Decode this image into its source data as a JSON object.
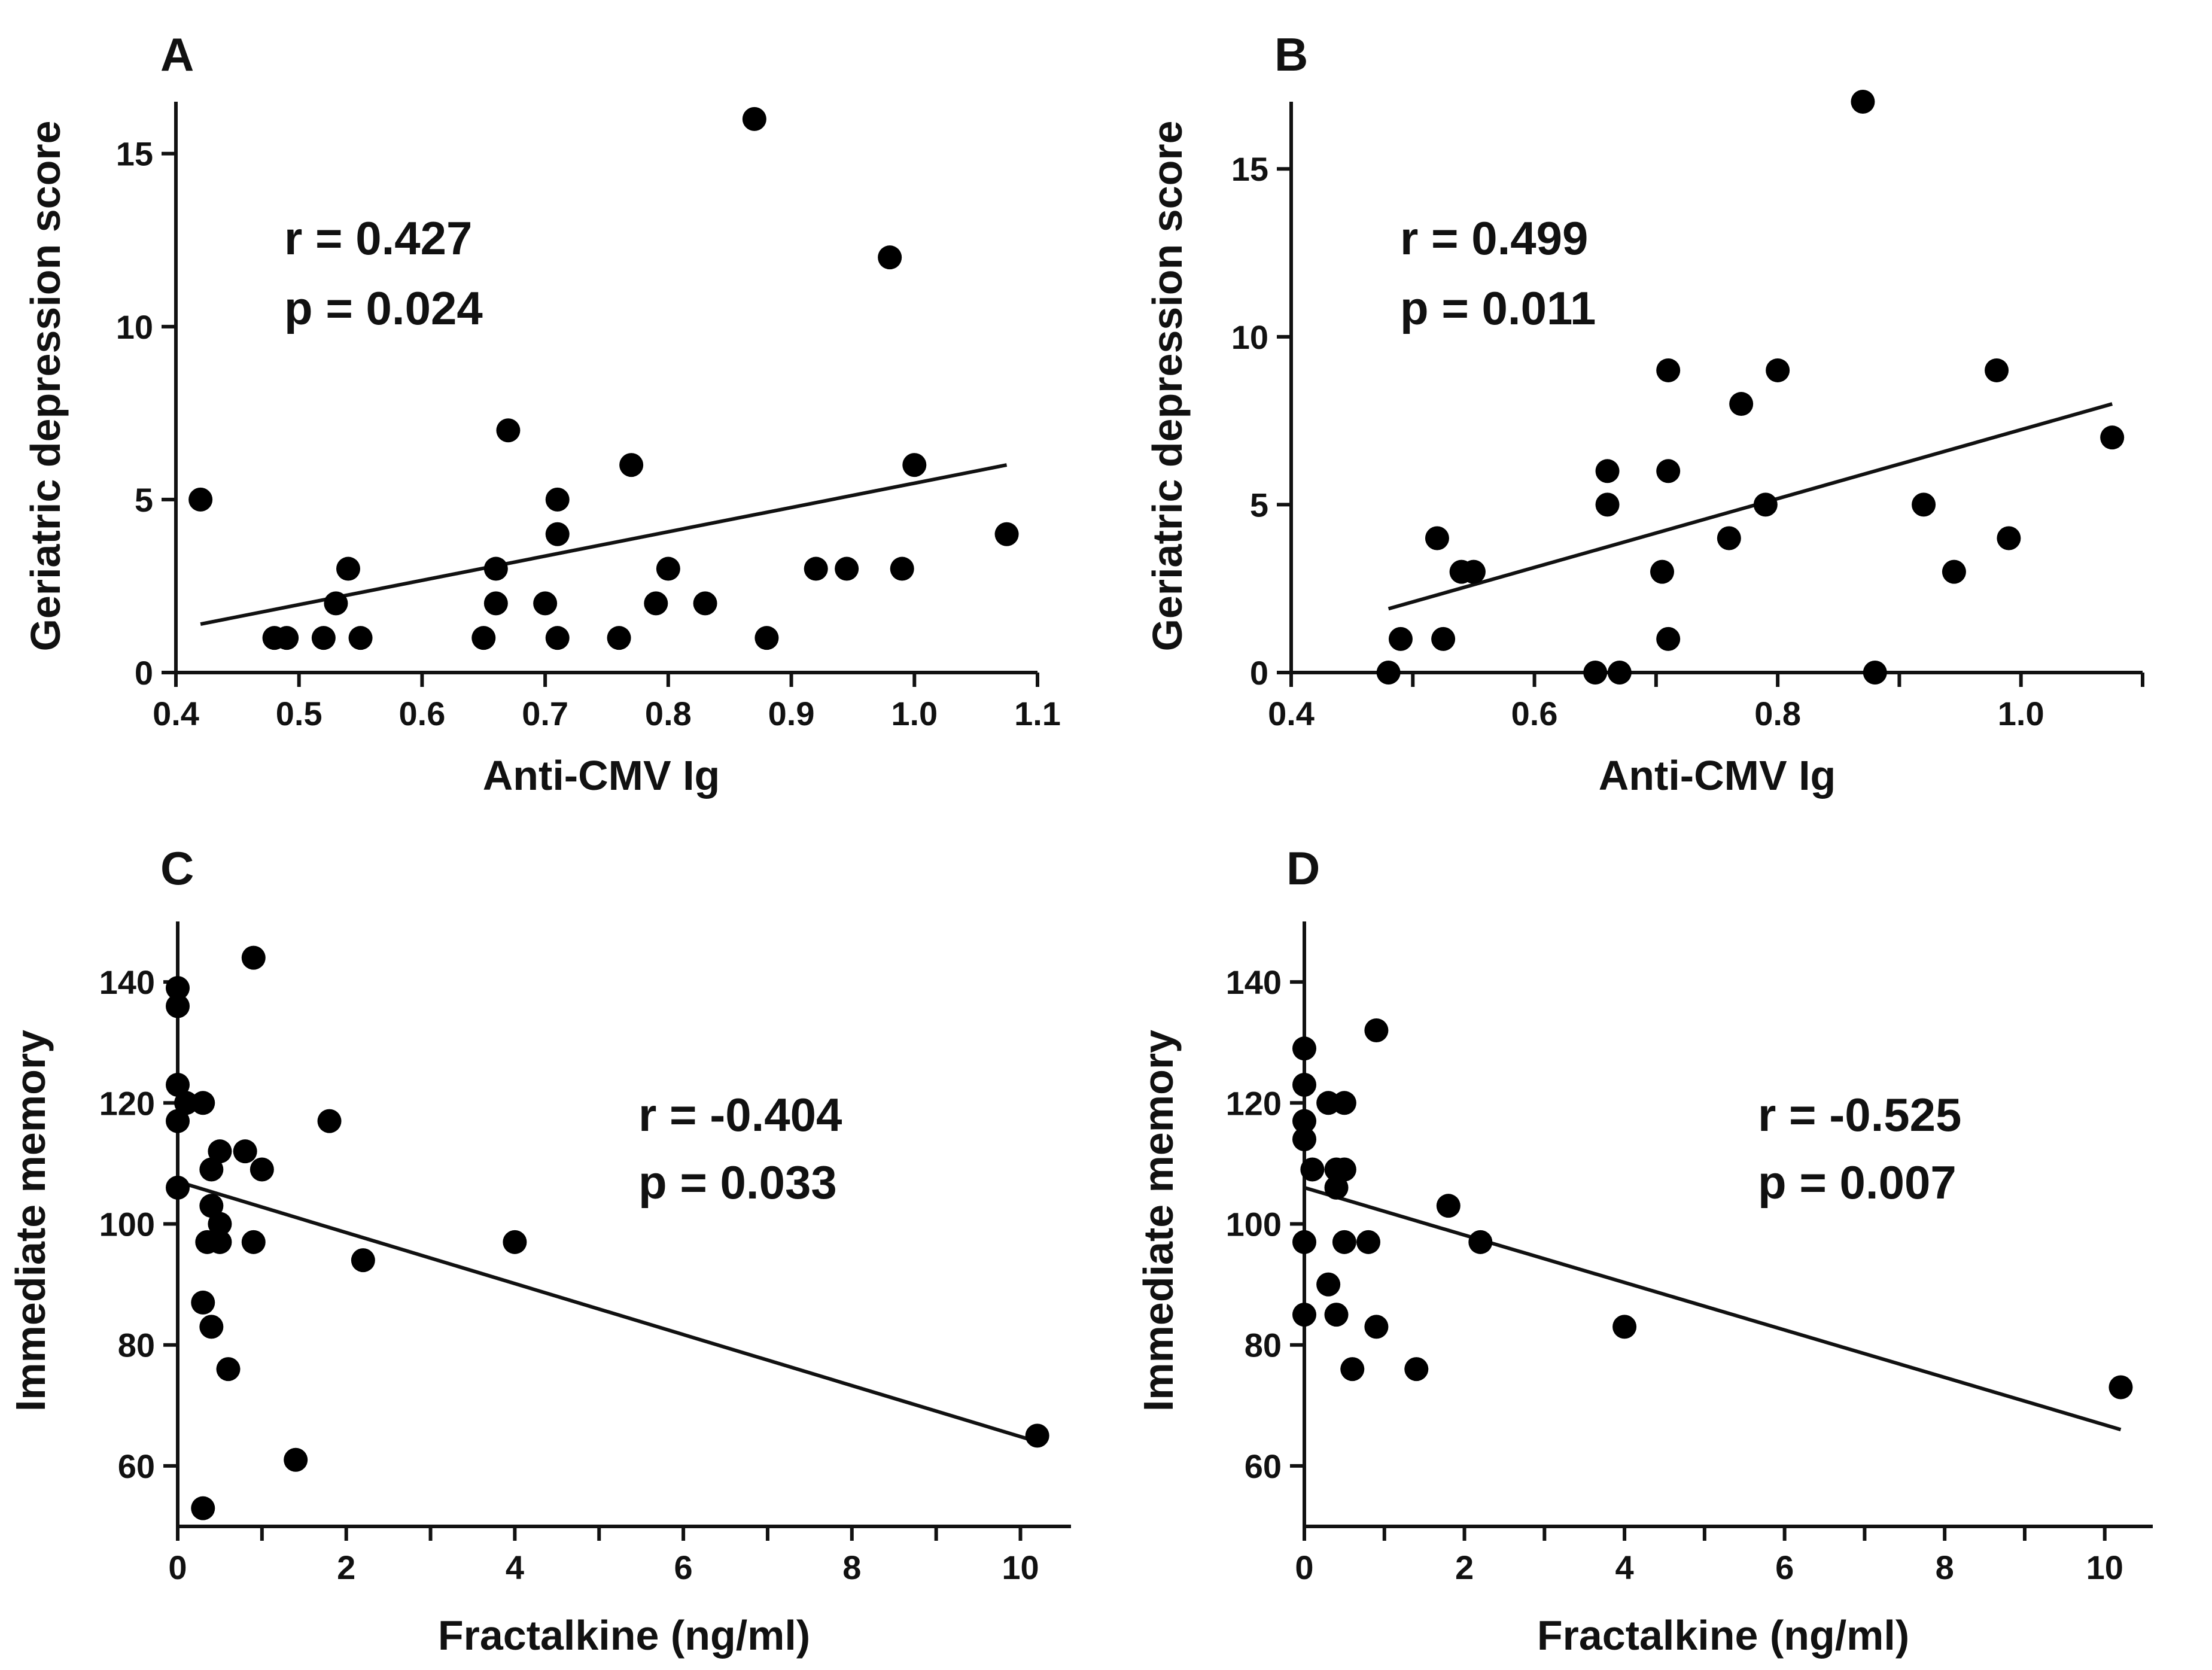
{
  "chart_data": [
    {
      "panel": "A",
      "type": "scatter",
      "xlabel": "Anti-CMV Ig",
      "ylabel": "Geriatric depression score",
      "xlim": [
        0.4,
        1.1
      ],
      "ylim": [
        0,
        16.5
      ],
      "xticks": [
        0.4,
        0.5,
        0.6,
        0.7,
        0.8,
        0.9,
        1.0,
        1.1
      ],
      "xtick_labels": [
        "0.4",
        "0.5",
        "0.6",
        "0.7",
        "0.8",
        "0.9",
        "1.0",
        "1.1"
      ],
      "yticks": [
        0,
        5,
        10,
        15
      ],
      "ytick_labels": [
        "0",
        "5",
        "10",
        "15"
      ],
      "stats": [
        "r = 0.427",
        "p = 0.024"
      ],
      "stats_position": "top-left",
      "grid": false,
      "points": [
        [
          0.42,
          5
        ],
        [
          0.48,
          1
        ],
        [
          0.49,
          1
        ],
        [
          0.52,
          1
        ],
        [
          0.53,
          2
        ],
        [
          0.54,
          3
        ],
        [
          0.55,
          1
        ],
        [
          0.65,
          1
        ],
        [
          0.66,
          3
        ],
        [
          0.66,
          2
        ],
        [
          0.67,
          7
        ],
        [
          0.7,
          2
        ],
        [
          0.71,
          5
        ],
        [
          0.71,
          4
        ],
        [
          0.71,
          1
        ],
        [
          0.76,
          1
        ],
        [
          0.77,
          6
        ],
        [
          0.79,
          2
        ],
        [
          0.8,
          3
        ],
        [
          0.83,
          2
        ],
        [
          0.87,
          16
        ],
        [
          0.88,
          1
        ],
        [
          0.92,
          3
        ],
        [
          0.945,
          3
        ],
        [
          0.98,
          12
        ],
        [
          0.99,
          3
        ],
        [
          1.0,
          6
        ],
        [
          1.075,
          4
        ]
      ],
      "fit": [
        [
          0.42,
          1.4
        ],
        [
          1.075,
          6.0
        ]
      ]
    },
    {
      "panel": "B",
      "type": "scatter",
      "xlabel": "Anti-CMV Ig",
      "ylabel": "Geriatric depression score",
      "xlim": [
        0.4,
        1.1
      ],
      "ylim": [
        0,
        17
      ],
      "xticks": [
        0.4,
        0.6,
        0.8,
        1.0
      ],
      "xtick_labels": [
        "0.4",
        "0.6",
        "0.8",
        "1.0"
      ],
      "yticks": [
        0,
        5,
        10,
        15
      ],
      "ytick_labels": [
        "0",
        "5",
        "10",
        "15"
      ],
      "stats": [
        "r = 0.499",
        "p = 0.011"
      ],
      "stats_position": "top-left",
      "grid": false,
      "points": [
        [
          0.48,
          0
        ],
        [
          0.49,
          1
        ],
        [
          0.52,
          4
        ],
        [
          0.525,
          1
        ],
        [
          0.54,
          3
        ],
        [
          0.55,
          3
        ],
        [
          0.65,
          0
        ],
        [
          0.66,
          6
        ],
        [
          0.66,
          5
        ],
        [
          0.67,
          0
        ],
        [
          0.705,
          3
        ],
        [
          0.71,
          9
        ],
        [
          0.71,
          6
        ],
        [
          0.71,
          1
        ],
        [
          0.76,
          4
        ],
        [
          0.77,
          8
        ],
        [
          0.79,
          5
        ],
        [
          0.8,
          9
        ],
        [
          0.87,
          17
        ],
        [
          0.88,
          0
        ],
        [
          0.92,
          5
        ],
        [
          0.945,
          3
        ],
        [
          0.98,
          9
        ],
        [
          0.99,
          4
        ],
        [
          1.075,
          7
        ]
      ],
      "fit": [
        [
          0.48,
          1.9
        ],
        [
          1.075,
          8.0
        ]
      ]
    },
    {
      "panel": "C",
      "type": "scatter",
      "xlabel": "Fractalkine (ng/ml)",
      "ylabel": "Immediate memory",
      "xlim": [
        0,
        10.6
      ],
      "ylim": [
        50,
        150
      ],
      "xticks": [
        0,
        2,
        4,
        6,
        8,
        10
      ],
      "xtick_labels": [
        "0",
        "2",
        "4",
        "6",
        "8",
        "10"
      ],
      "yticks": [
        60,
        80,
        100,
        120,
        140
      ],
      "ytick_labels": [
        "60",
        "80",
        "100",
        "120",
        "140"
      ],
      "stats": [
        "r = -0.404",
        "p = 0.033"
      ],
      "stats_position": "center-right",
      "grid": false,
      "points": [
        [
          0,
          139
        ],
        [
          0,
          136
        ],
        [
          0,
          123
        ],
        [
          0,
          117
        ],
        [
          0,
          106
        ],
        [
          0.1,
          120
        ],
        [
          0.3,
          120
        ],
        [
          0.3,
          87
        ],
        [
          0.3,
          53
        ],
        [
          0.35,
          97
        ],
        [
          0.4,
          109
        ],
        [
          0.4,
          103
        ],
        [
          0.4,
          83
        ],
        [
          0.5,
          112
        ],
        [
          0.5,
          100
        ],
        [
          0.5,
          97
        ],
        [
          0.6,
          76
        ],
        [
          0.8,
          112
        ],
        [
          0.9,
          97
        ],
        [
          0.9,
          144
        ],
        [
          1.0,
          109
        ],
        [
          1.4,
          61
        ],
        [
          1.8,
          117
        ],
        [
          2.2,
          94
        ],
        [
          4.0,
          97
        ],
        [
          10.2,
          65
        ]
      ],
      "fit": [
        [
          0,
          107
        ],
        [
          10.2,
          64
        ]
      ]
    },
    {
      "panel": "D",
      "type": "scatter",
      "xlabel": "Fractalkine (ng/ml)",
      "ylabel": "Immediate memory",
      "xlim": [
        0,
        10.6
      ],
      "ylim": [
        50,
        150
      ],
      "xticks": [
        0,
        2,
        4,
        6,
        8,
        10
      ],
      "xtick_labels": [
        "0",
        "2",
        "4",
        "6",
        "8",
        "10"
      ],
      "yticks": [
        60,
        80,
        100,
        120,
        140
      ],
      "ytick_labels": [
        "60",
        "80",
        "100",
        "120",
        "140"
      ],
      "stats": [
        "r = -0.525",
        "p = 0.007"
      ],
      "stats_position": "center-right",
      "grid": false,
      "points": [
        [
          0,
          129
        ],
        [
          0,
          123
        ],
        [
          0,
          117
        ],
        [
          0,
          114
        ],
        [
          0,
          97
        ],
        [
          0,
          85
        ],
        [
          0.1,
          109
        ],
        [
          0.3,
          120
        ],
        [
          0.3,
          90
        ],
        [
          0.4,
          109
        ],
        [
          0.4,
          106
        ],
        [
          0.4,
          85
        ],
        [
          0.5,
          120
        ],
        [
          0.5,
          109
        ],
        [
          0.5,
          97
        ],
        [
          0.6,
          76
        ],
        [
          0.8,
          97
        ],
        [
          0.9,
          132
        ],
        [
          0.9,
          83
        ],
        [
          1.4,
          76
        ],
        [
          1.8,
          103
        ],
        [
          2.2,
          97
        ],
        [
          4.0,
          83
        ],
        [
          10.2,
          73
        ]
      ],
      "fit": [
        [
          0,
          106
        ],
        [
          10.2,
          66
        ]
      ]
    }
  ]
}
